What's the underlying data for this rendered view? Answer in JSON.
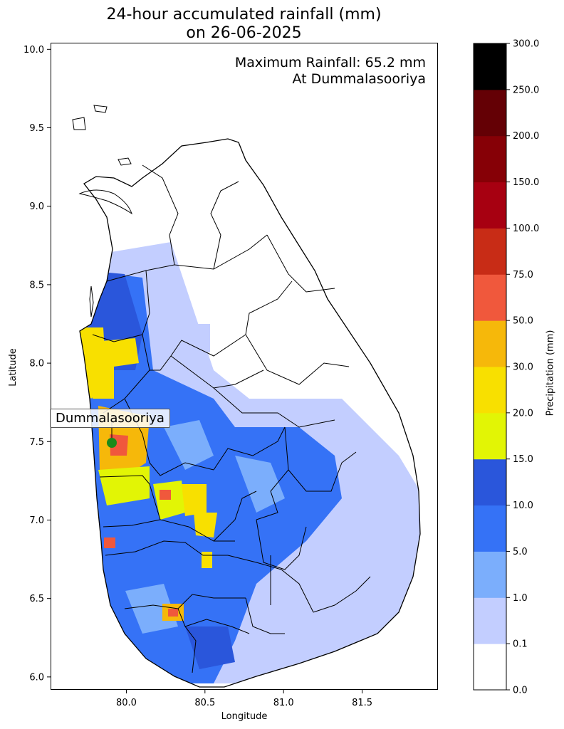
{
  "title": {
    "line1": "24-hour accumulated rainfall (mm)",
    "line2": "on 26-06-2025"
  },
  "annotation": {
    "line1": "Maximum Rainfall: 65.2 mm",
    "line2": "At Dummalasooriya"
  },
  "max_station": {
    "name": "Dummalasooriya",
    "lon": 79.9,
    "lat": 7.49,
    "value_mm": 65.2,
    "marker_color": "#1a8a1a"
  },
  "axes": {
    "xlabel": "Longitude",
    "ylabel": "Latitude",
    "xlim": [
      79.52,
      81.98
    ],
    "ylim": [
      5.92,
      10.04
    ],
    "xticks": [
      "80.0",
      "80.5",
      "81.0",
      "81.5"
    ],
    "yticks": [
      "6.0",
      "6.5",
      "7.0",
      "7.5",
      "8.0",
      "8.5",
      "9.0",
      "9.5",
      "10.0"
    ]
  },
  "colorbar": {
    "label": "Precipitation (mm)",
    "ticks": [
      "0.0",
      "0.1",
      "1.0",
      "5.0",
      "10.0",
      "15.0",
      "20.0",
      "30.0",
      "50.0",
      "75.0",
      "100.0",
      "150.0",
      "200.0",
      "250.0",
      "300.0"
    ],
    "colors": [
      "#ffffff",
      "#c3ceff",
      "#7baefc",
      "#3572f6",
      "#2a56db",
      "#e2f505",
      "#f8e000",
      "#f6b80a",
      "#f0583c",
      "#c82c16",
      "#a70011",
      "#860006",
      "#640005",
      "#000000"
    ]
  }
}
